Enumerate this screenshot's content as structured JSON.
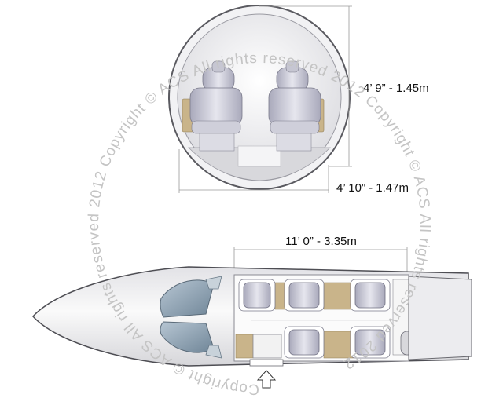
{
  "dimensions": {
    "cabin_height": "4’ 9” - 1.45m",
    "cabin_width": "4’ 10” - 1.47m",
    "cabin_length": "11’ 0” - 3.35m"
  },
  "watermark": {
    "text": "Copyright © ACS All rights reserved 2012 Copyright © ACS All rights reserved 2012 Copyright © ACS All rights reserved 2012"
  },
  "seating": {
    "cross_section_seats": 2,
    "plan_seats": 5
  },
  "colors": {
    "fuselage": "#f0f0f2",
    "seat": "#d2d2dc",
    "seat_cushion": "#b8b8c8",
    "side_ledge": "#c9b48a",
    "window": "#8ea3b6"
  }
}
